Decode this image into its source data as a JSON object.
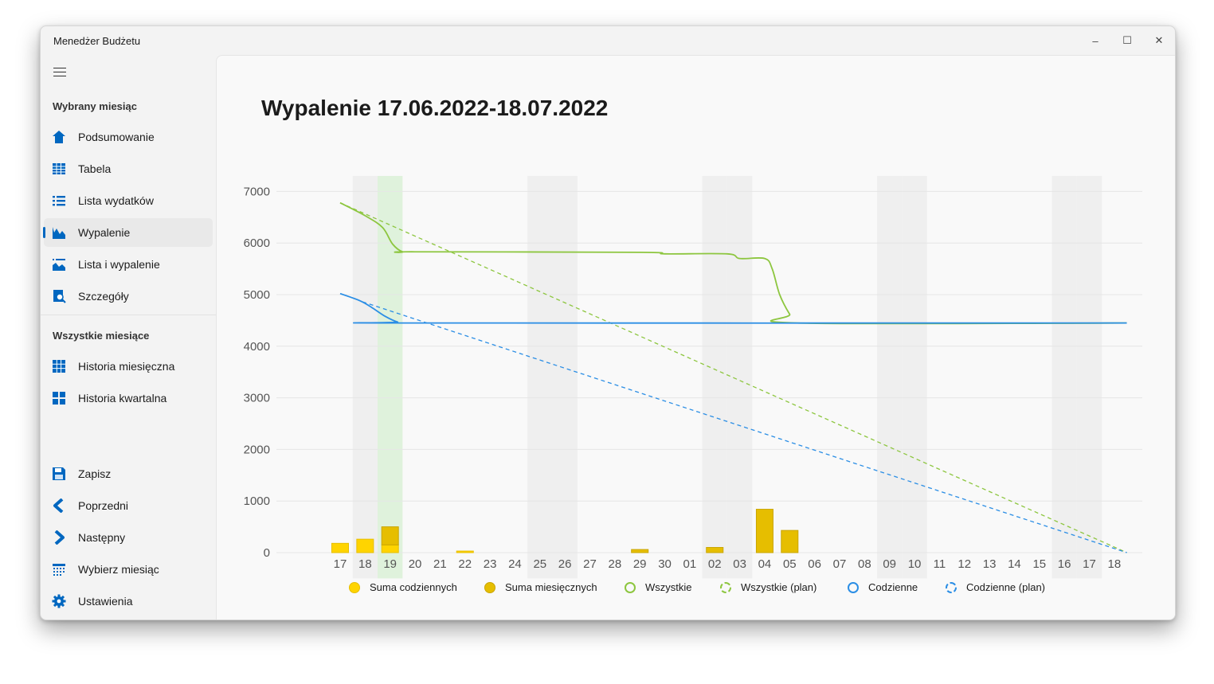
{
  "window": {
    "title": "Menedżer Budżetu",
    "controls": [
      "–",
      "☐",
      "✕"
    ]
  },
  "sidebar": {
    "section1": "Wybrany miesiąc",
    "items1": [
      {
        "label": "Podsumowanie",
        "icon": "home-icon"
      },
      {
        "label": "Tabela",
        "icon": "table-icon"
      },
      {
        "label": "Lista wydatków",
        "icon": "list-icon"
      },
      {
        "label": "Wypalenie",
        "icon": "area-chart-icon",
        "selected": true
      },
      {
        "label": "Lista i wypalenie",
        "icon": "list-chart-icon"
      },
      {
        "label": "Szczegóły",
        "icon": "details-icon"
      }
    ],
    "section2": "Wszystkie miesiące",
    "items2": [
      {
        "label": "Historia miesięczna",
        "icon": "grid-icon"
      },
      {
        "label": "Historia kwartalna",
        "icon": "tiles-icon"
      }
    ],
    "footer": [
      {
        "label": "Zapisz",
        "icon": "save-icon"
      },
      {
        "label": "Poprzedni",
        "icon": "chevron-left-icon"
      },
      {
        "label": "Następny",
        "icon": "chevron-right-icon"
      },
      {
        "label": "Wybierz miesiąc",
        "icon": "calendar-icon"
      },
      {
        "label": "Ustawienia",
        "icon": "gear-icon"
      }
    ]
  },
  "page": {
    "title": "Wypalenie 17.06.2022-18.07.2022"
  },
  "colors": {
    "accent": "#0067c0",
    "daily_sum": "#ffd400",
    "monthly_sum": "#e6be00",
    "all": "#8dc63f",
    "daily": "#2b8ee5",
    "weekend": "#efefef",
    "today": "#dff2dc"
  },
  "chart_data": {
    "type": "bar",
    "title": "",
    "x": [
      "17",
      "18",
      "19",
      "20",
      "21",
      "22",
      "23",
      "24",
      "25",
      "26",
      "27",
      "28",
      "29",
      "30",
      "01",
      "02",
      "03",
      "04",
      "05",
      "06",
      "07",
      "08",
      "09",
      "10",
      "11",
      "12",
      "13",
      "14",
      "15",
      "16",
      "17",
      "18"
    ],
    "ylim": [
      -500,
      7300
    ],
    "yticks": [
      0,
      1000,
      2000,
      3000,
      4000,
      5000,
      6000,
      7000
    ],
    "weekend_x": [
      "18",
      "25",
      "26",
      "02",
      "03",
      "09",
      "10",
      "16",
      "17"
    ],
    "highlight_x": "19",
    "grid": true,
    "legend_position": "bottom",
    "series": [
      {
        "name": "Suma codziennych",
        "kind": "bar",
        "values": [
          180,
          260,
          150,
          0,
          0,
          30,
          0,
          0,
          0,
          0,
          0,
          0,
          0,
          0,
          0,
          0,
          0,
          0,
          0,
          0,
          0,
          0,
          0,
          0,
          0,
          0,
          0,
          0,
          0,
          0,
          0,
          0
        ]
      },
      {
        "name": "Suma miesięcznych",
        "kind": "bar",
        "values": [
          0,
          0,
          350,
          0,
          0,
          0,
          0,
          0,
          0,
          0,
          0,
          0,
          60,
          0,
          0,
          100,
          0,
          840,
          430,
          0,
          0,
          0,
          0,
          0,
          0,
          0,
          0,
          0,
          0,
          0,
          0,
          0
        ]
      },
      {
        "name": "Wszystkie",
        "kind": "line",
        "points": [
          [
            0,
            6780
          ],
          [
            1,
            6530
          ],
          [
            1.7,
            6300
          ],
          [
            2.1,
            5980
          ],
          [
            2.5,
            5830
          ],
          [
            3,
            5830
          ],
          [
            12,
            5820
          ],
          [
            13,
            5790
          ],
          [
            15.5,
            5790
          ],
          [
            16,
            5700
          ],
          [
            17,
            5700
          ],
          [
            17.3,
            5500
          ],
          [
            17.6,
            5000
          ],
          [
            18,
            4620
          ],
          [
            18.3,
            4450
          ],
          [
            31.5,
            4450
          ]
        ]
      },
      {
        "name": "Wszystkie (plan)",
        "kind": "line",
        "dashed": true,
        "points": [
          [
            0,
            6780
          ],
          [
            31.5,
            0
          ]
        ]
      },
      {
        "name": "Codzienne",
        "kind": "line",
        "points": [
          [
            0,
            5020
          ],
          [
            0.8,
            4880
          ],
          [
            1.3,
            4740
          ],
          [
            1.8,
            4580
          ],
          [
            2.3,
            4470
          ],
          [
            2.8,
            4450
          ],
          [
            31.5,
            4450
          ]
        ]
      },
      {
        "name": "Codzienne (plan)",
        "kind": "line",
        "dashed": true,
        "points": [
          [
            0.9,
            4860
          ],
          [
            31.5,
            0
          ]
        ]
      }
    ]
  }
}
